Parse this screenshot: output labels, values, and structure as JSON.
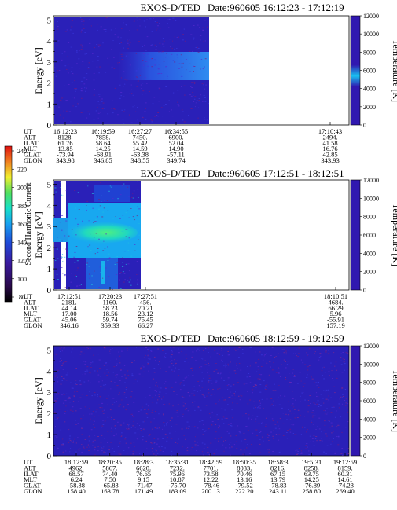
{
  "colorbar": {
    "label": "Second Harmonic Current",
    "ticks": [
      "240",
      "220",
      "200",
      "180",
      "160",
      "140",
      "120",
      "100",
      "80"
    ]
  },
  "panels": [
    {
      "title": "EXOS-D/TED",
      "date": "Date:960605",
      "time_range": "16:12:23 - 17:12:19",
      "ylabel": "Energy [eV]",
      "yticks": [
        "0",
        "1",
        "2",
        "3",
        "4",
        "5"
      ],
      "ylabel_right": "Temperature [K]",
      "yticks_right": [
        "0",
        "2000",
        "4000",
        "6000",
        "8000",
        "10000",
        "12000"
      ],
      "row_labels": [
        "UT",
        "ALT",
        "ILAT",
        "MLT",
        "GLAT",
        "GLON"
      ],
      "columns": [
        [
          "16:12:23",
          "8128.",
          "61.76",
          "13.85",
          "-73.94",
          "343.98"
        ],
        [
          "16:19:59",
          "7858.",
          "58.64",
          "14.25",
          "-68.91",
          "346.85"
        ],
        [
          "16:27:27",
          "7450.",
          "55.42",
          "14.59",
          "-63.38",
          "348.55"
        ],
        [
          "16:34:55",
          "6900.",
          "52.04",
          "14.90",
          "-57.11",
          "349.74"
        ],
        [
          "17:10:43",
          "2494.",
          "41.58",
          "16.76",
          "42.85",
          "343.93"
        ]
      ]
    },
    {
      "title": "EXOS-D/TED",
      "date": "Date:960605",
      "time_range": "17:12:51 - 18:12:51",
      "ylabel": "Energy [eV]",
      "yticks": [
        "0",
        "1",
        "2",
        "3",
        "4",
        "5"
      ],
      "ylabel_right": "Temperature [K]",
      "yticks_right": [
        "0",
        "2000",
        "4000",
        "6000",
        "8000",
        "10000",
        "12000"
      ],
      "row_labels": [
        "UT",
        "ALT",
        "ILAT",
        "MLT",
        "GLAT",
        "GLON"
      ],
      "columns": [
        [
          "17:12:51",
          "2181.",
          "44.14",
          "17.00",
          "45.06",
          "346.16"
        ],
        [
          "17:20:23",
          "1160.",
          "58.23",
          "18.56",
          "59.74",
          "359.33"
        ],
        [
          "17:27:51",
          "456.",
          "70.21",
          "23.12",
          "75.45",
          "66.27"
        ],
        [
          "18:10:51",
          "4684.",
          "66.29",
          "5.96",
          "-55.91",
          "157.19"
        ]
      ]
    },
    {
      "title": "EXOS-D/TED",
      "date": "Date:960605",
      "time_range": "18:12:59 - 19:12:59",
      "ylabel": "Energy [eV]",
      "yticks": [
        "0",
        "1",
        "2",
        "3",
        "4",
        "5"
      ],
      "ylabel_right": "Temperature [K]",
      "yticks_right": [
        "0",
        "2000",
        "4000",
        "6000",
        "8000",
        "10000",
        "12000"
      ],
      "row_labels": [
        "UT",
        "ALT",
        "ILAT",
        "MLT",
        "GLAT",
        "GLON"
      ],
      "columns": [
        [
          "18:12:59",
          "4962.",
          "68.57",
          "6.24",
          "-58.38",
          "158.40"
        ],
        [
          "18:20:35",
          "5867.",
          "74.40",
          "7.50",
          "-65.83",
          "163.78"
        ],
        [
          "18:28:3",
          "6620.",
          "76.65",
          "9.15",
          "-71.47",
          "171.49"
        ],
        [
          "18:35:31",
          "7232.",
          "75.96",
          "10.87",
          "-75.70",
          "183.09"
        ],
        [
          "18:42:59",
          "7701.",
          "73.58",
          "12.22",
          "-78.46",
          "200.13"
        ],
        [
          "18:50:35",
          "8033.",
          "70.46",
          "13.16",
          "-79.52",
          "222.20"
        ],
        [
          "18:58:3",
          "8216.",
          "67.15",
          "13.79",
          "-78.83",
          "243.11"
        ],
        [
          "19:5:31",
          "8258.",
          "63.75",
          "14.25",
          "-76.89",
          "258.80"
        ],
        [
          "19:12:59",
          "8159.",
          "60.31",
          "14.61",
          "-74.23",
          "269.40"
        ]
      ]
    }
  ],
  "chart_data": [
    {
      "type": "heatmap",
      "title": "EXOS-D/TED  Date:960605  16:12:23 - 17:12:19",
      "xlabel": "UT",
      "ylabel": "Energy [eV]",
      "ylabel_right": "Temperature [K]",
      "ylim": [
        0,
        5.2
      ],
      "ylim_right": [
        0,
        12000
      ],
      "x_ticks": [
        "16:12:23",
        "16:19:59",
        "16:27:27",
        "16:34:55",
        "17:10:43"
      ],
      "data_coverage": "16:12:23 - 16:37:30",
      "features": [
        {
          "energy_band": [
            2.0,
            3.2
          ],
          "level": 140,
          "time_range": "16:22:00 - 16:37:30"
        }
      ],
      "temperature_trace": {
        "time": "17:10:43 - 17:12:19",
        "value": 4800,
        "range": [
          3200,
          6400
        ]
      }
    },
    {
      "type": "heatmap",
      "title": "EXOS-D/TED  Date:960605  17:12:51 - 18:12:51",
      "xlabel": "UT",
      "ylabel": "Energy [eV]",
      "ylabel_right": "Temperature [K]",
      "ylim": [
        0,
        5.2
      ],
      "ylim_right": [
        0,
        12000
      ],
      "x_ticks": [
        "17:12:51",
        "17:20:23",
        "17:27:51",
        "18:10:51"
      ],
      "data_coverage": "17:12:51 - 17:29:00",
      "features": [
        {
          "energy_band": [
            1.8,
            3.4
          ],
          "level": 160,
          "time_range": "17:13:30 - 17:29:00"
        },
        {
          "energy_band": [
            2.3,
            3.1
          ],
          "level": 180,
          "time_range": "17:18:00 - 17:27:00"
        },
        {
          "energy_band": [
            0.0,
            1.5
          ],
          "level": 135,
          "time_range": "17:17:00 - 17:27:30"
        }
      ]
    },
    {
      "type": "heatmap",
      "title": "EXOS-D/TED  Date:960605  18:12:59 - 19:12:59",
      "xlabel": "UT",
      "ylabel": "Energy [eV]",
      "ylabel_right": "Temperature [K]",
      "ylim": [
        0,
        5.2
      ],
      "ylim_right": [
        0,
        12000
      ],
      "x_ticks": [
        "18:12:59",
        "18:20:35",
        "18:28:3",
        "18:35:31",
        "18:42:59",
        "18:50:35",
        "18:58:3",
        "19:5:31",
        "19:12:59"
      ],
      "data_coverage": "18:12:59 - 19:12:59",
      "features": [
        {
          "energy_band": [
            0.0,
            5.2
          ],
          "level": 100,
          "time_range": "18:12:59 - 19:12:59"
        }
      ]
    }
  ],
  "colors": {
    "background_fill": "#2a20b8",
    "noise_dot": "#7a1a7a",
    "temperature_bar": "#3018b0",
    "colorbar_scale": [
      "#000000",
      "#2a0a4a",
      "#3a1aa0",
      "#1e4ad8",
      "#18a0f0",
      "#18e0c8",
      "#50e060",
      "#f0f030",
      "#f08020",
      "#e01010"
    ]
  }
}
